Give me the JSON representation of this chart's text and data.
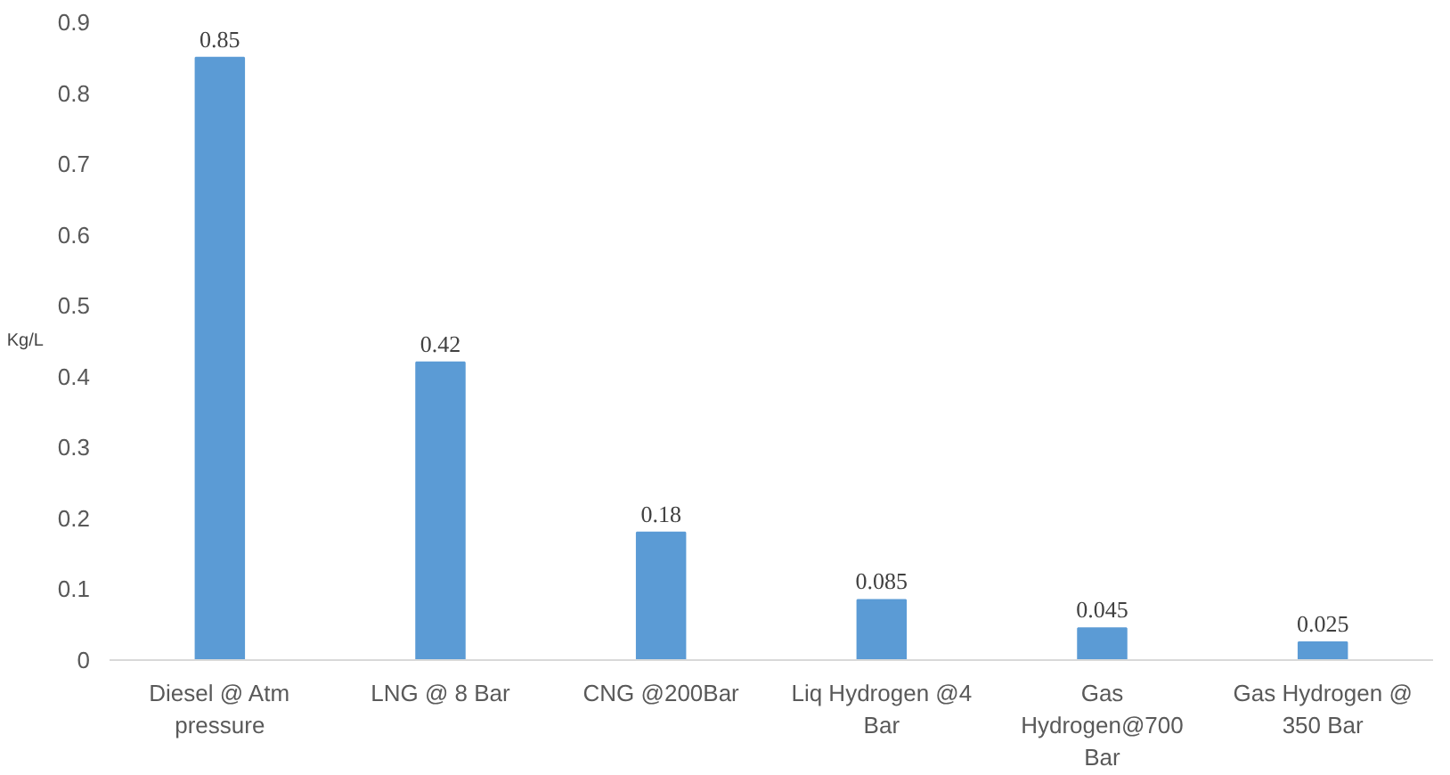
{
  "chart_data": {
    "type": "bar",
    "ylabel": "Kg/L",
    "categories": [
      "Diesel @ Atm pressure",
      "LNG @ 8 Bar",
      "CNG @200Bar",
      "Liq Hydrogen @4 Bar",
      "Gas Hydrogen@700 Bar",
      "Gas Hydrogen @ 350 Bar"
    ],
    "values": [
      0.85,
      0.42,
      0.18,
      0.085,
      0.045,
      0.025
    ],
    "color": "#5b9bd5",
    "ylim": [
      0,
      0.9
    ],
    "yticks": [
      0,
      0.1,
      0.2,
      0.3,
      0.4,
      0.5,
      0.6,
      0.7,
      0.8,
      0.9
    ],
    "grid": false,
    "data_labels": true
  }
}
